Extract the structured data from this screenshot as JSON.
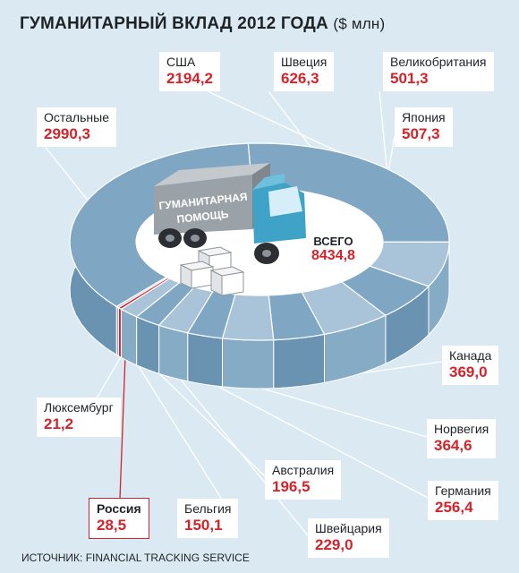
{
  "title": "ГУМАНИТАРНЫЙ ВКЛАД 2012 ГОДА",
  "unit": "($ млн)",
  "source": "ИСТОЧНИК: FINANCIAL TRACKING SERVICE",
  "truck_label_1": "ГУМАНИТАРНАЯ",
  "truck_label_2": "ПОМОЩЬ",
  "total_label": "ВСЕГО",
  "total_value": "8434,8",
  "colors": {
    "accent": "#d6232b",
    "pie_dark": "#7fa6c2",
    "pie_light": "#a9c4d8",
    "hole": "#ffffff",
    "background": "#dbe9f3"
  },
  "chart_data": {
    "type": "pie",
    "title": "ГУМАНИТАРНЫЙ ВКЛАД 2012 ГОДА ($ млн)",
    "total": 8434.8,
    "categories": [
      "США",
      "Швеция",
      "Великобритания",
      "Япония",
      "Канада",
      "Норвегия",
      "Германия",
      "Швейцария",
      "Австралия",
      "Бельгия",
      "Россия",
      "Люксембург",
      "Остальные"
    ],
    "values": [
      2194.2,
      626.3,
      501.3,
      507.3,
      369.0,
      364.6,
      256.4,
      229.0,
      196.5,
      150.1,
      28.5,
      21.2,
      2990.3
    ],
    "labels": [
      "2194,2",
      "626,3",
      "501,3",
      "507,3",
      "369,0",
      "364,6",
      "256,4",
      "229,0",
      "196,5",
      "150,1",
      "28,5",
      "21,2",
      "2990,3"
    ],
    "highlight": "Россия"
  }
}
